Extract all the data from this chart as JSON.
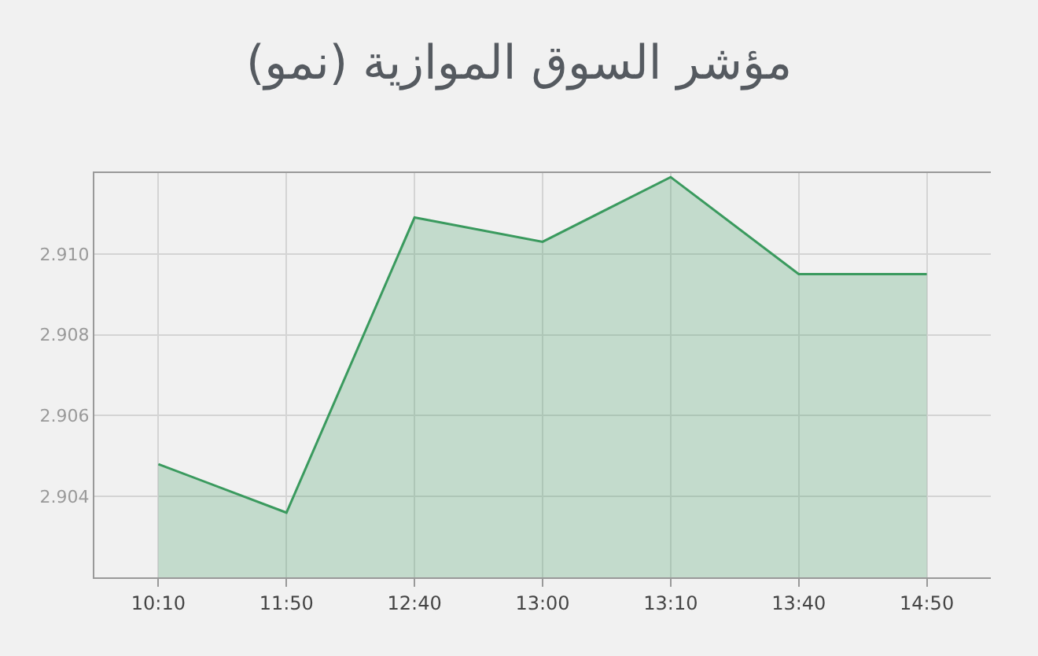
{
  "chart_data": {
    "type": "area",
    "title": "مؤشر السوق الموازية (نمو)",
    "categories": [
      "10:10",
      "11:50",
      "12:40",
      "13:00",
      "13:10",
      "13:40",
      "14:50"
    ],
    "series": [
      {
        "color": "#3a9a5e",
        "values": [
          2.9048,
          2.9036,
          2.9109,
          2.9103,
          2.9119,
          2.9095,
          2.9095
        ]
      }
    ],
    "ylim": [
      2.902,
      2.912
    ],
    "yticks": [
      2.904,
      2.906,
      2.908,
      {
        "value": 2.91,
        "label": "2.910"
      }
    ],
    "grid": true,
    "marker": "none",
    "line_style": "solid"
  }
}
